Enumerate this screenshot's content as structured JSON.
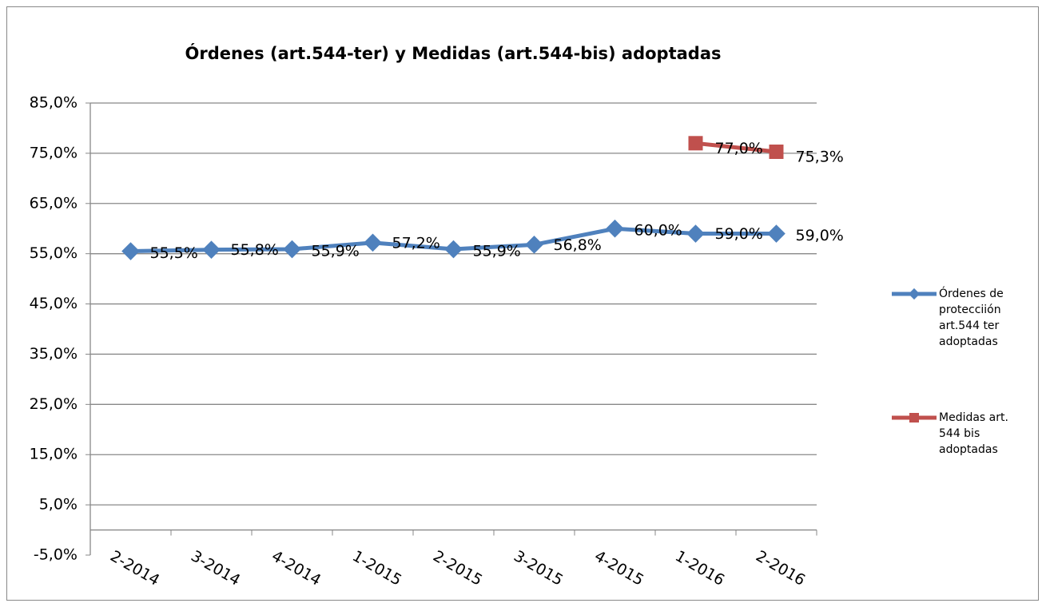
{
  "chart_data": {
    "type": "line",
    "title": "Órdenes  (art.544-ter) y Medidas (art.544-bis) adoptadas",
    "categories": [
      "2-2014",
      "3-2014",
      "4-2014",
      "1-2015",
      "2-2015",
      "3-2015",
      "4-2015",
      "1-2016",
      "2-2016"
    ],
    "series": [
      {
        "name": "Órdenes de protecciión art.544 ter adoptadas",
        "color": "#4f81bd",
        "values": [
          55.5,
          55.8,
          55.9,
          57.2,
          55.9,
          56.8,
          60.0,
          59.0,
          59.0
        ],
        "value_labels": [
          "55,5%",
          "55,8%",
          "55,9%",
          "57,2%",
          "55,9%",
          "56,8%",
          "60,0%",
          "59,0%",
          "59,0%"
        ]
      },
      {
        "name": "Medidas art. 544 bis adoptadas",
        "color": "#c0504d",
        "values": [
          null,
          null,
          null,
          null,
          null,
          null,
          null,
          77.0,
          75.3
        ],
        "value_labels": [
          null,
          null,
          null,
          null,
          null,
          null,
          null,
          "77,0%",
          "75,3%"
        ]
      }
    ],
    "ylim": [
      -5,
      85
    ],
    "yticks": [
      {
        "value": -5,
        "label": "-5,0%"
      },
      {
        "value": 5,
        "label": "5,0%"
      },
      {
        "value": 15,
        "label": "15,0%"
      },
      {
        "value": 25,
        "label": "25,0%"
      },
      {
        "value": 35,
        "label": "35,0%"
      },
      {
        "value": 45,
        "label": "45,0%"
      },
      {
        "value": 55,
        "label": "55,0%"
      },
      {
        "value": 65,
        "label": "65,0%"
      },
      {
        "value": 75,
        "label": "75,0%"
      },
      {
        "value": 85,
        "label": "85,0%"
      }
    ],
    "grid": true,
    "legend": "right"
  }
}
